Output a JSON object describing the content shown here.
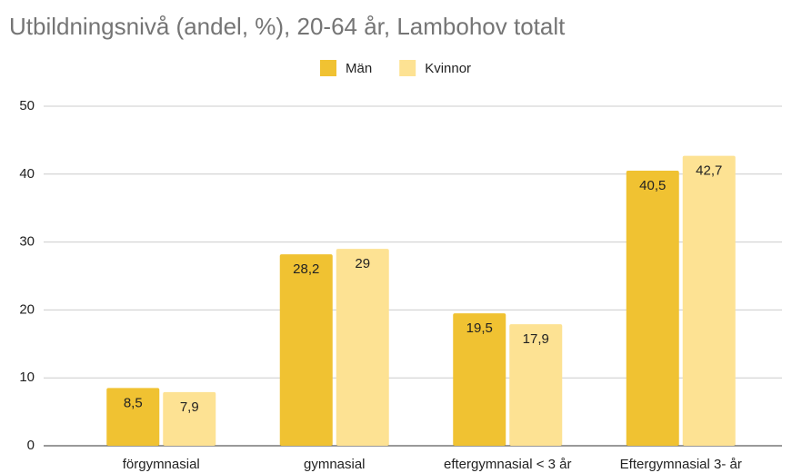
{
  "chart_data": {
    "type": "bar",
    "title": "Utbildningsnivå (andel, %), 20-64 år, Lambohov totalt",
    "categories": [
      "förgymnasial",
      "gymnasial",
      "eftergymnasial < 3 år",
      "Eftergymnasial 3- år"
    ],
    "series": [
      {
        "name": "Män",
        "color": "#f0c232",
        "values": [
          8.5,
          28.2,
          19.5,
          40.5
        ],
        "value_labels": [
          "8,5",
          "28,2",
          "19,5",
          "40,5"
        ]
      },
      {
        "name": "Kvinnor",
        "color": "#fde293",
        "values": [
          7.9,
          29,
          17.9,
          42.7
        ],
        "value_labels": [
          "7,9",
          "29",
          "17,9",
          "42,7"
        ]
      }
    ],
    "ylim": [
      0,
      50
    ],
    "yticks": [
      0,
      10,
      20,
      30,
      40,
      50
    ],
    "grid": true,
    "legend": "top"
  }
}
